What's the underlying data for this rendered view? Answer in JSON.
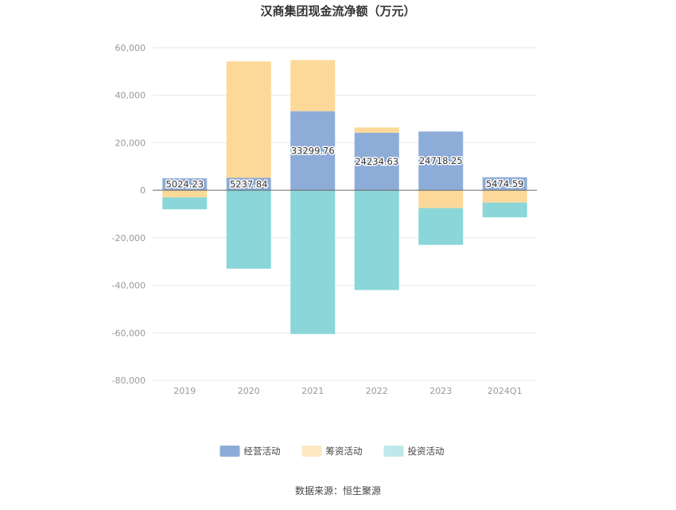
{
  "chart_data": {
    "type": "bar",
    "stacked": true,
    "title": "汉商集团现金流净额（万元）",
    "xlabel": "",
    "ylabel": "",
    "categories": [
      "2019",
      "2020",
      "2021",
      "2022",
      "2023",
      "2024Q1"
    ],
    "ylim": [
      -80000,
      60000
    ],
    "yticks": [
      60000,
      40000,
      20000,
      0,
      -20000,
      -40000,
      -60000,
      -80000
    ],
    "ytick_labels": [
      "60,000",
      "40,000",
      "20,000",
      "0",
      "-20,000",
      "-40,000",
      "-60,000",
      "-80,000"
    ],
    "grid": true,
    "legend_position": "bottom",
    "series": [
      {
        "name": "经营活动",
        "color": "#8eacd8",
        "values": [
          5024.23,
          5237.84,
          33299.76,
          24234.63,
          24718.25,
          5474.59
        ],
        "data_labels": [
          "5024.23",
          "5237.84",
          "33299.76",
          "24234.63",
          "24718.25",
          "5474.59"
        ]
      },
      {
        "name": "筹资活动",
        "color": "#fdd999",
        "values": [
          -3000,
          49000,
          21500,
          2200,
          -7500,
          -5200
        ]
      },
      {
        "name": "投资活动",
        "color": "#8ad6d9",
        "values": [
          -5000,
          -33000,
          -60500,
          -42000,
          -15500,
          -6200
        ]
      }
    ],
    "legend_swatch_colors": [
      "#8eacd8",
      "#fde8c4",
      "#bfe8ea"
    ]
  },
  "source": "数据来源：恒生聚源"
}
